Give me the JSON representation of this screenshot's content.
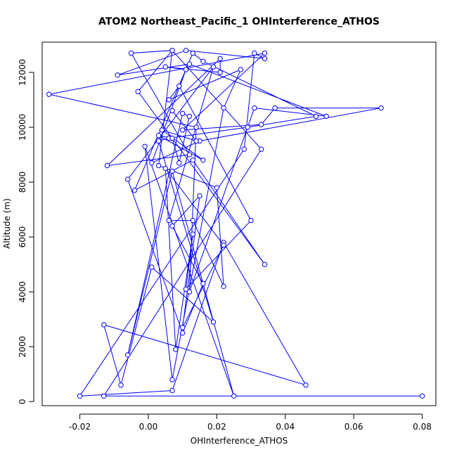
{
  "chart_data": {
    "type": "line",
    "title": "ATOM2 Northeast_Pacific_1 OHInterference_ATHOS",
    "xlabel": "OHInterference_ATHOS",
    "ylabel": "Altitude (m)",
    "xlim": [
      -0.031,
      0.084
    ],
    "ylim": [
      -150,
      13100
    ],
    "xticks": [
      -0.02,
      0.0,
      0.02,
      0.04,
      0.06,
      0.08
    ],
    "xtick_labels": [
      "-0.02",
      "0.00",
      "0.02",
      "0.04",
      "0.06",
      "0.08"
    ],
    "yticks": [
      0,
      2000,
      4000,
      6000,
      8000,
      10000,
      12000
    ],
    "ytick_labels": [
      "0",
      "2000",
      "4000",
      "6000",
      "8000",
      "10000",
      "12000"
    ],
    "grid": false,
    "legend": "none",
    "line_color": "#0000ff",
    "marker": "open-circle",
    "series": [
      {
        "x": [
          0.08,
          -0.013,
          0.033,
          0.007,
          -0.003,
          0.034,
          0.013,
          -0.004,
          0.013,
          0.016,
          0.049,
          0.029,
          0.006,
          0.003,
          0.019,
          0.001,
          -0.008,
          -0.013,
          0.046,
          0.022,
          0.007,
          -0.02,
          0.028,
          0.031,
          0.034,
          0.011,
          -0.009,
          0.012,
          0.052,
          0.031,
          0.012,
          0.014,
          -0.029,
          0.034,
          0.01,
          0.033,
          0.037,
          0.068,
          0.015,
          0.001,
          0.011,
          0.005,
          0.021,
          0.021,
          -0.012,
          0.012,
          -0.005,
          0.007,
          0.003,
          0.02,
          0.022,
          0.013,
          0.006,
          0.019,
          -0.006,
          0.01,
          0.016,
          0.007,
          0.015,
          0.01,
          0.022,
          0.005,
          0.008,
          0.013,
          0.011,
          0.03,
          0.009,
          0.006,
          0.027,
          0.022,
          0.007,
          -0.001,
          0.025,
          0.007,
          -0.006,
          0.01,
          0.012,
          0.009,
          0.007,
          0.003,
          0.016,
          0.004,
          0.014,
          0.007
        ],
        "y": [
          200,
          200,
          9200,
          12800,
          11300,
          5000,
          8800,
          7700,
          12700,
          12400,
          10400,
          10000,
          9600,
          9500,
          2900,
          4900,
          600,
          2800,
          600,
          5800,
          400,
          200,
          9200,
          12700,
          12500,
          12800,
          11900,
          12300,
          10400,
          10700,
          4000,
          10000,
          11200,
          12700,
          9900,
          10100,
          10700,
          10700,
          9500,
          8700,
          12100,
          12200,
          12000,
          12500,
          8600,
          9000,
          12700,
          12800,
          8600,
          7800,
          4200,
          6600,
          6600,
          12200,
          8100,
          2500,
          4300,
          6400,
          7500,
          2700,
          5700,
          8500,
          1900,
          6100,
          4100,
          6600,
          11500,
          11000,
          12100,
          10700,
          800,
          9300,
          200,
          8400,
          1700,
          10500,
          10400,
          8700,
          9600,
          9700,
          8800,
          9900,
          9500,
          10600
        ]
      }
    ]
  }
}
